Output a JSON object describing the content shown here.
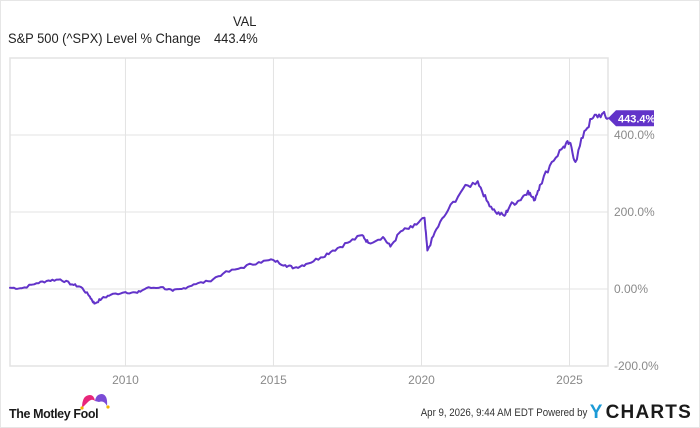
{
  "header": {
    "column_label": "VAL",
    "series_name": "S&P 500 (^SPX) Level % Change",
    "series_value": "443.4%"
  },
  "colors": {
    "line": "#6233c9",
    "grid": "#e3e3e3",
    "tick_text": "#8a8a8a",
    "badge_bg": "#6233c9",
    "ycharts_accent": "#1c9ad6"
  },
  "end_badge": "443.4%",
  "footer": {
    "brand": "The Motley Fool",
    "timestamp": "Apr 9, 2026, 9:44 AM EDT",
    "powered_by": "Powered by",
    "provider": "CHARTS",
    "provider_prefix": "Y"
  },
  "chart_data": {
    "type": "line",
    "title": "S&P 500 (^SPX) Level % Change",
    "xlabel": "",
    "ylabel": "",
    "x_ticks": [
      "2010",
      "2015",
      "2020",
      "2025"
    ],
    "y_ticks": [
      "400.0%",
      "200.0%",
      "0.00%",
      "-200.0%"
    ],
    "ylim": [
      -200,
      600
    ],
    "xlim": [
      2006.1,
      2026.3
    ],
    "grid": true,
    "legend_position": "top-left",
    "series": [
      {
        "name": "S&P 500 (^SPX) Level % Change",
        "final_value": 443.4,
        "x": [
          2006.1,
          2006.5,
          2007.0,
          2007.4,
          2007.8,
          2008.2,
          2008.5,
          2008.8,
          2008.95,
          2009.2,
          2009.5,
          2010.0,
          2010.4,
          2010.7,
          2011.2,
          2011.6,
          2011.9,
          2012.3,
          2012.8,
          2013.3,
          2013.9,
          2014.5,
          2015.0,
          2015.4,
          2015.7,
          2016.1,
          2016.6,
          2017.0,
          2017.5,
          2018.0,
          2018.2,
          2018.7,
          2018.95,
          2019.3,
          2019.7,
          2020.1,
          2020.2,
          2020.5,
          2020.9,
          2021.4,
          2021.9,
          2022.2,
          2022.5,
          2022.8,
          2023.0,
          2023.3,
          2023.6,
          2023.8,
          2024.0,
          2024.4,
          2024.8,
          2025.0,
          2025.2,
          2025.5,
          2025.8,
          2026.1,
          2026.3
        ],
        "y": [
          3,
          2,
          15,
          22,
          25,
          12,
          5,
          -20,
          -38,
          -25,
          -15,
          -8,
          -10,
          2,
          5,
          -5,
          0,
          12,
          20,
          40,
          55,
          70,
          75,
          62,
          55,
          65,
          82,
          100,
          120,
          140,
          120,
          135,
          110,
          150,
          160,
          185,
          100,
          155,
          205,
          260,
          280,
          230,
          200,
          190,
          218,
          230,
          255,
          230,
          270,
          330,
          370,
          380,
          330,
          410,
          445,
          455,
          443.4
        ]
      }
    ]
  }
}
